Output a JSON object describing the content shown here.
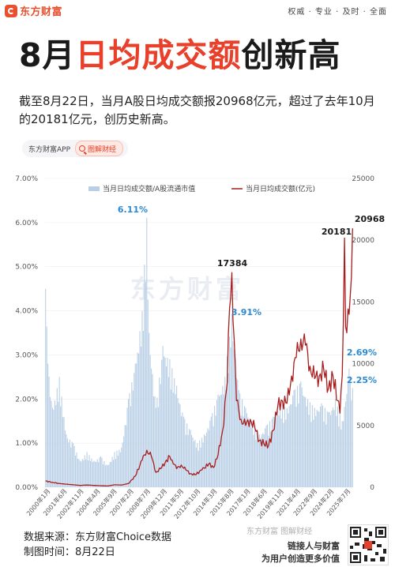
{
  "brand": {
    "name": "东方财富",
    "slogan": "权威 · 专业 · 及时 · 全面"
  },
  "title": {
    "part1": "8月",
    "part2": "日均成交额",
    "part3": "创新高"
  },
  "description": "截至8月22日，当月A股日均成交额报20968亿元，超过了去年10月的20181亿元，创历史新高。",
  "tabs": {
    "app": "东方财富APP",
    "active": "图解财经"
  },
  "watermark": "东方财富",
  "colors": {
    "accent": "#e8402a",
    "bar": "#b8cfe6",
    "line": "#a81e1e",
    "label_blue": "#2b8ad1"
  },
  "chart_data": {
    "type": "bar+line",
    "legend": {
      "bar": "当月日均成交额/A股流通市值",
      "line": "当月日均成交额(亿元)"
    },
    "y_left": {
      "ticks": [
        "0.00%",
        "1.00%",
        "2.00%",
        "3.00%",
        "4.00%",
        "5.00%",
        "6.00%",
        "7.00%"
      ],
      "range": [
        0,
        7
      ]
    },
    "y_right": {
      "ticks": [
        "0",
        "5000",
        "10000",
        "15000",
        "20000",
        "25000"
      ],
      "range": [
        0,
        25000
      ]
    },
    "x_ticks": [
      "2000年1月",
      "2001年6月",
      "2002年11月",
      "2004年4月",
      "2005年9月",
      "2007年2月",
      "2008年7月",
      "2009年12月",
      "2011年5月",
      "2012年10月",
      "2014年3月",
      "2015年8月",
      "2017年1月",
      "2018年6月",
      "2019年11月",
      "2021年4月",
      "2022年9月",
      "2024年2月",
      "2025年7月"
    ],
    "bar_keypoints": [
      [
        0,
        4.5
      ],
      [
        2,
        2.8
      ],
      [
        6,
        1.8
      ],
      [
        12,
        2.5
      ],
      [
        18,
        1.2
      ],
      [
        24,
        1.0
      ],
      [
        30,
        0.6
      ],
      [
        36,
        0.8
      ],
      [
        42,
        0.6
      ],
      [
        48,
        0.7
      ],
      [
        54,
        0.5
      ],
      [
        60,
        0.8
      ],
      [
        66,
        0.9
      ],
      [
        72,
        2.0
      ],
      [
        78,
        2.8
      ],
      [
        84,
        4.0
      ],
      [
        88,
        6.11
      ],
      [
        90,
        3.5
      ],
      [
        96,
        1.8
      ],
      [
        102,
        3.2
      ],
      [
        108,
        2.9
      ],
      [
        114,
        2.3
      ],
      [
        120,
        1.6
      ],
      [
        126,
        1.3
      ],
      [
        132,
        1.0
      ],
      [
        138,
        1.2
      ],
      [
        144,
        1.6
      ],
      [
        150,
        2.1
      ],
      [
        156,
        2.5
      ],
      [
        162,
        3.91
      ],
      [
        168,
        2.2
      ],
      [
        174,
        1.8
      ],
      [
        180,
        1.5
      ],
      [
        186,
        1.2
      ],
      [
        192,
        1.4
      ],
      [
        198,
        1.6
      ],
      [
        204,
        1.9
      ],
      [
        210,
        1.8
      ],
      [
        216,
        2.2
      ],
      [
        222,
        2.4
      ],
      [
        228,
        2.0
      ],
      [
        234,
        1.8
      ],
      [
        240,
        1.9
      ],
      [
        246,
        1.7
      ],
      [
        252,
        2.0
      ],
      [
        258,
        1.5
      ],
      [
        264,
        2.69
      ],
      [
        267,
        2.25
      ]
    ],
    "line_keypoints": [
      [
        0,
        500
      ],
      [
        6,
        400
      ],
      [
        12,
        300
      ],
      [
        18,
        250
      ],
      [
        24,
        200
      ],
      [
        30,
        150
      ],
      [
        36,
        180
      ],
      [
        42,
        150
      ],
      [
        48,
        120
      ],
      [
        54,
        100
      ],
      [
        60,
        200
      ],
      [
        66,
        180
      ],
      [
        72,
        300
      ],
      [
        78,
        900
      ],
      [
        84,
        2200
      ],
      [
        88,
        3000
      ],
      [
        92,
        2500
      ],
      [
        96,
        1200
      ],
      [
        100,
        1500
      ],
      [
        104,
        2000
      ],
      [
        108,
        2500
      ],
      [
        110,
        2200
      ],
      [
        114,
        1500
      ],
      [
        118,
        1800
      ],
      [
        122,
        1400
      ],
      [
        126,
        1100
      ],
      [
        130,
        1000
      ],
      [
        136,
        1400
      ],
      [
        142,
        1900
      ],
      [
        146,
        1600
      ],
      [
        150,
        2600
      ],
      [
        154,
        4600
      ],
      [
        158,
        8500
      ],
      [
        160,
        14500
      ],
      [
        162,
        17384
      ],
      [
        164,
        12000
      ],
      [
        166,
        7000
      ],
      [
        170,
        5500
      ],
      [
        174,
        5000
      ],
      [
        178,
        5500
      ],
      [
        182,
        4800
      ],
      [
        186,
        3800
      ],
      [
        190,
        3500
      ],
      [
        194,
        3400
      ],
      [
        198,
        4600
      ],
      [
        202,
        6600
      ],
      [
        206,
        7000
      ],
      [
        210,
        6800
      ],
      [
        214,
        9000
      ],
      [
        218,
        10500
      ],
      [
        222,
        12000
      ],
      [
        226,
        11500
      ],
      [
        230,
        9800
      ],
      [
        234,
        8800
      ],
      [
        238,
        9000
      ],
      [
        242,
        9500
      ],
      [
        246,
        8000
      ],
      [
        250,
        9000
      ],
      [
        254,
        7000
      ],
      [
        256,
        6000
      ],
      [
        258,
        9000
      ],
      [
        260,
        20181
      ],
      [
        261,
        13000
      ],
      [
        262,
        12500
      ],
      [
        264,
        14000
      ],
      [
        266,
        17000
      ],
      [
        267,
        20968
      ]
    ],
    "annotations": [
      {
        "text": "6.11%",
        "series": "bar",
        "index": 88
      },
      {
        "text": "17384",
        "series": "line",
        "index": 162
      },
      {
        "text": "3.91%",
        "series": "bar",
        "index": 162
      },
      {
        "text": "20181",
        "series": "line",
        "index": 260
      },
      {
        "text": "20968",
        "series": "line",
        "index": 267
      },
      {
        "text": "2.69%",
        "series": "bar",
        "index": 264
      },
      {
        "text": "2.25%",
        "series": "bar",
        "index": 267
      }
    ]
  },
  "footer": {
    "source": "数据来源：东方财富Choice数据",
    "date": "制图时间：8月22日",
    "brand_watermark": "东方财富 图解财经",
    "slogan_line1": "链接人与财富",
    "slogan_line2": "为用户创造更多价值"
  }
}
